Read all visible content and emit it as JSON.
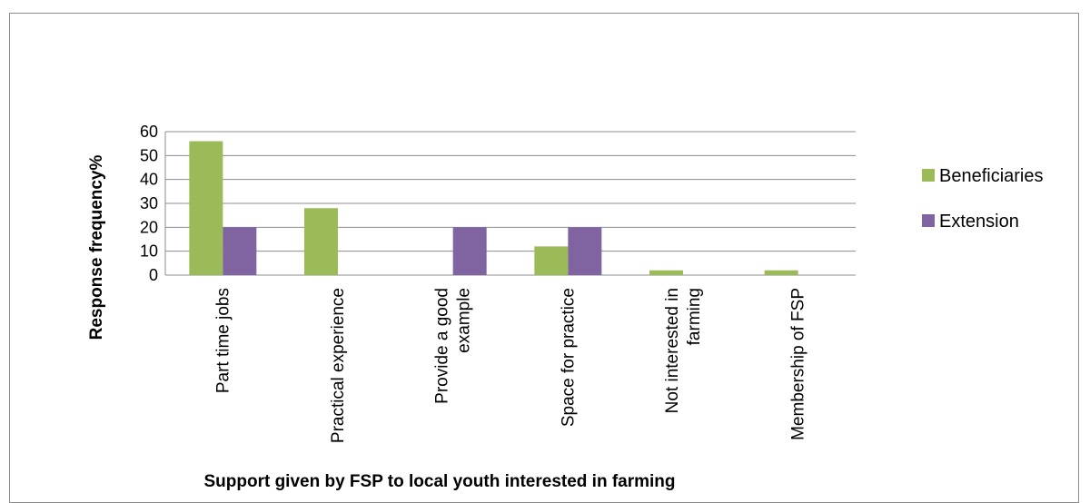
{
  "chart_data": {
    "type": "bar",
    "title": "",
    "xlabel": "Support given by FSP to local youth interested in farming",
    "ylabel": "Response frequency%",
    "ylim": [
      0,
      60
    ],
    "yticks": [
      0,
      10,
      20,
      30,
      40,
      50,
      60
    ],
    "grid": true,
    "legend_position": "right",
    "categories": [
      [
        "Part time jobs"
      ],
      [
        "Practical experience"
      ],
      [
        "Provide a good",
        "example"
      ],
      [
        "Space for practice"
      ],
      [
        "Not interested in",
        "farming"
      ],
      [
        "Membership of FSP"
      ]
    ],
    "series": [
      {
        "name": "Beneficiaries",
        "color": "#9bbb59",
        "values": [
          56,
          28,
          0,
          12,
          2,
          2
        ]
      },
      {
        "name": "Extension",
        "color": "#8064a2",
        "values": [
          20,
          0,
          20,
          20,
          0,
          0
        ]
      }
    ]
  }
}
